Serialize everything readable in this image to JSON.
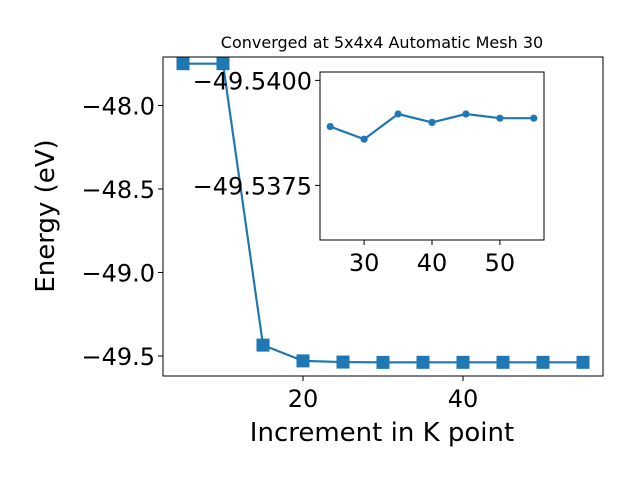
{
  "chart_data": [
    {
      "type": "line",
      "title": "Converged at 5x4x4 Automatic Mesh 30",
      "xlabel": "Increment in K point",
      "ylabel": "Energy (eV)",
      "xlim": [
        2.5,
        57.5
      ],
      "ylim": [
        -49.62,
        -47.71
      ],
      "x_ticks": [
        20,
        40
      ],
      "x_tick_labels": [
        "20",
        "40"
      ],
      "y_ticks": [
        -48.0,
        -48.5,
        -49.0,
        -49.5
      ],
      "y_tick_labels": [
        "−48.0",
        "−48.5",
        "−49.0",
        "−49.5"
      ],
      "marker": "square",
      "color": "#1f77b4",
      "grid": false,
      "legend": "none",
      "series": [
        {
          "x": [
            5,
            10,
            15,
            20,
            25,
            30,
            35,
            40,
            45,
            50,
            55
          ],
          "y": [
            -47.75,
            -47.75,
            -49.435,
            -49.5295,
            -49.5365,
            -49.5385,
            -49.538,
            -49.5381,
            -49.538,
            -49.5381,
            -49.5381
          ]
        }
      ]
    },
    {
      "type": "line",
      "title": "",
      "xlabel": "",
      "ylabel": "",
      "xlim": [
        23.5,
        56.5
      ],
      "ylim": [
        -49.5362,
        -49.5402
      ],
      "x_ticks": [
        30,
        40,
        50
      ],
      "x_tick_labels": [
        "30",
        "40",
        "50"
      ],
      "y_ticks": [
        -49.54,
        -49.5375
      ],
      "y_tick_labels": [
        "−49.5400",
        "−49.5375"
      ],
      "marker": "circle",
      "color": "#1f77b4",
      "grid": false,
      "legend": "none",
      "series": [
        {
          "x": [
            25,
            30,
            35,
            40,
            45,
            50,
            55
          ],
          "y": [
            -49.5389,
            -49.5386,
            -49.5392,
            -49.539,
            -49.5392,
            -49.5391,
            -49.5391
          ]
        }
      ]
    }
  ]
}
